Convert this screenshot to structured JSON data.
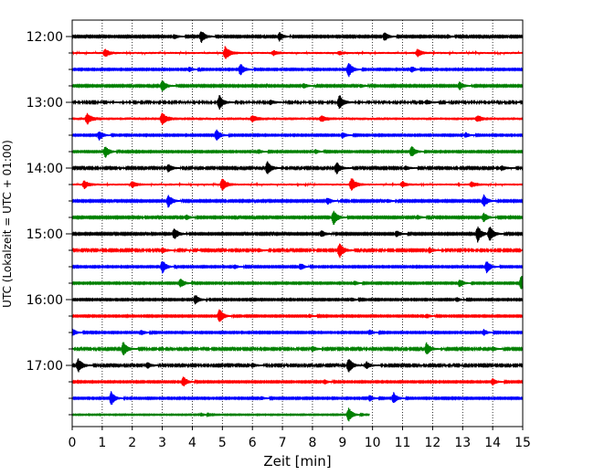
{
  "chart_data": {
    "type": "line",
    "subtype": "helicorder",
    "xlabel": "Zeit  [min]",
    "ylabel": "UTC (Lokalzeit = UTC + 01:00)",
    "xlim": [
      0,
      15
    ],
    "xticks": [
      0,
      1,
      2,
      3,
      4,
      5,
      6,
      7,
      8,
      9,
      10,
      11,
      12,
      13,
      14,
      15
    ],
    "vertical_gridlines": "dotted",
    "row_start": "12:00",
    "row_interval_min": 15,
    "hour_labels": [
      "12:00",
      "13:00",
      "14:00",
      "15:00",
      "16:00",
      "17:00"
    ],
    "colors_cycle": [
      "#000000",
      "#ff0000",
      "#0000ff",
      "#008000"
    ],
    "rows": [
      {
        "start": "12:00",
        "color": "#000000",
        "amplitude": 0.08,
        "end_min": 15,
        "events": [
          [
            4.3,
            0.7
          ],
          [
            6.9,
            0.5
          ],
          [
            10.4,
            0.5
          ],
          [
            3.4,
            0.25
          ],
          [
            12.5,
            0.2
          ]
        ]
      },
      {
        "start": "12:15",
        "color": "#ff0000",
        "amplitude": 0.12,
        "end_min": 15,
        "events": [
          [
            1.1,
            0.45
          ],
          [
            5.1,
            0.75
          ],
          [
            11.5,
            0.4
          ],
          [
            6.7,
            0.25
          ],
          [
            8.9,
            0.2
          ]
        ]
      },
      {
        "start": "12:30",
        "color": "#0000ff",
        "amplitude": 0.07,
        "end_min": 15,
        "events": [
          [
            5.6,
            0.7
          ],
          [
            9.2,
            0.9
          ],
          [
            11.3,
            0.35
          ],
          [
            3.9,
            0.25
          ]
        ]
      },
      {
        "start": "12:45",
        "color": "#008000",
        "amplitude": 0.08,
        "end_min": 15,
        "events": [
          [
            3.0,
            0.7
          ],
          [
            12.9,
            0.45
          ],
          [
            7.7,
            0.3
          ],
          [
            9.6,
            0.2
          ]
        ]
      },
      {
        "start": "13:00",
        "color": "#000000",
        "amplitude": 0.1,
        "end_min": 15,
        "events": [
          [
            4.9,
            0.8
          ],
          [
            8.9,
            0.85
          ],
          [
            6.6,
            0.25
          ],
          [
            11.8,
            0.25
          ]
        ]
      },
      {
        "start": "13:15",
        "color": "#ff0000",
        "amplitude": 0.16,
        "end_min": 15,
        "events": [
          [
            0.5,
            0.55
          ],
          [
            3.0,
            0.65
          ],
          [
            6.0,
            0.3
          ],
          [
            8.3,
            0.3
          ],
          [
            13.5,
            0.3
          ]
        ]
      },
      {
        "start": "13:30",
        "color": "#0000ff",
        "amplitude": 0.07,
        "end_min": 15,
        "events": [
          [
            0.9,
            0.55
          ],
          [
            4.8,
            0.65
          ],
          [
            9.0,
            0.35
          ],
          [
            13.1,
            0.3
          ]
        ]
      },
      {
        "start": "13:45",
        "color": "#008000",
        "amplitude": 0.07,
        "end_min": 15,
        "events": [
          [
            1.1,
            0.7
          ],
          [
            11.3,
            0.65
          ],
          [
            6.2,
            0.25
          ],
          [
            8.1,
            0.25
          ]
        ]
      },
      {
        "start": "14:00",
        "color": "#000000",
        "amplitude": 0.09,
        "end_min": 15,
        "events": [
          [
            3.2,
            0.45
          ],
          [
            6.5,
            0.75
          ],
          [
            8.8,
            0.7
          ],
          [
            14.3,
            0.3
          ],
          [
            11.1,
            0.2
          ]
        ]
      },
      {
        "start": "14:15",
        "color": "#ff0000",
        "amplitude": 0.12,
        "end_min": 15,
        "events": [
          [
            0.4,
            0.45
          ],
          [
            2.0,
            0.35
          ],
          [
            5.0,
            0.7
          ],
          [
            9.3,
            0.75
          ],
          [
            11.0,
            0.3
          ],
          [
            13.3,
            0.3
          ]
        ]
      },
      {
        "start": "14:30",
        "color": "#0000ff",
        "amplitude": 0.08,
        "end_min": 15,
        "events": [
          [
            3.2,
            0.75
          ],
          [
            8.5,
            0.4
          ],
          [
            13.7,
            0.7
          ],
          [
            10.5,
            0.2
          ]
        ]
      },
      {
        "start": "14:45",
        "color": "#008000",
        "amplitude": 0.08,
        "end_min": 15,
        "events": [
          [
            8.7,
            0.85
          ],
          [
            13.7,
            0.55
          ],
          [
            3.8,
            0.3
          ],
          [
            11.5,
            0.25
          ]
        ]
      },
      {
        "start": "15:00",
        "color": "#000000",
        "amplitude": 0.08,
        "end_min": 15,
        "events": [
          [
            3.4,
            0.7
          ],
          [
            8.3,
            0.4
          ],
          [
            13.5,
            0.9
          ],
          [
            13.9,
            0.9
          ],
          [
            10.8,
            0.35
          ]
        ]
      },
      {
        "start": "15:15",
        "color": "#ff0000",
        "amplitude": 0.09,
        "end_min": 15,
        "events": [
          [
            8.9,
            0.9
          ],
          [
            3.0,
            0.3
          ],
          [
            11.9,
            0.3
          ],
          [
            6.2,
            0.2
          ]
        ]
      },
      {
        "start": "15:30",
        "color": "#0000ff",
        "amplitude": 0.07,
        "end_min": 15,
        "events": [
          [
            3.0,
            0.75
          ],
          [
            7.6,
            0.4
          ],
          [
            13.8,
            0.7
          ],
          [
            5.4,
            0.25
          ]
        ]
      },
      {
        "start": "15:45",
        "color": "#008000",
        "amplitude": 0.07,
        "end_min": 15,
        "events": [
          [
            3.6,
            0.55
          ],
          [
            12.9,
            0.45
          ],
          [
            14.95,
            0.9
          ],
          [
            9.4,
            0.25
          ]
        ]
      },
      {
        "start": "16:00",
        "color": "#000000",
        "amplitude": 0.07,
        "end_min": 15,
        "events": [
          [
            4.1,
            0.55
          ],
          [
            12.8,
            0.25
          ],
          [
            9.3,
            0.2
          ]
        ]
      },
      {
        "start": "16:15",
        "color": "#ff0000",
        "amplitude": 0.07,
        "end_min": 15,
        "events": [
          [
            4.9,
            0.85
          ],
          [
            11.8,
            0.25
          ],
          [
            7.9,
            0.2
          ]
        ]
      },
      {
        "start": "16:30",
        "color": "#0000ff",
        "amplitude": 0.07,
        "end_min": 15,
        "events": [
          [
            0.0,
            0.45
          ],
          [
            2.3,
            0.3
          ],
          [
            9.9,
            0.3
          ],
          [
            13.7,
            0.35
          ]
        ]
      },
      {
        "start": "16:45",
        "color": "#008000",
        "amplitude": 0.09,
        "end_min": 15,
        "events": [
          [
            1.7,
            0.8
          ],
          [
            11.8,
            0.7
          ],
          [
            8.0,
            0.3
          ],
          [
            14.0,
            0.25
          ]
        ]
      },
      {
        "start": "17:00",
        "color": "#000000",
        "amplitude": 0.09,
        "end_min": 15,
        "events": [
          [
            0.2,
            0.8
          ],
          [
            2.5,
            0.35
          ],
          [
            9.2,
            0.85
          ],
          [
            9.8,
            0.4
          ],
          [
            6.0,
            0.25
          ]
        ]
      },
      {
        "start": "17:15",
        "color": "#ff0000",
        "amplitude": 0.07,
        "end_min": 15,
        "events": [
          [
            3.7,
            0.6
          ],
          [
            14.0,
            0.4
          ],
          [
            8.4,
            0.25
          ]
        ]
      },
      {
        "start": "17:30",
        "color": "#0000ff",
        "amplitude": 0.07,
        "end_min": 15,
        "events": [
          [
            1.3,
            0.8
          ],
          [
            10.7,
            0.65
          ],
          [
            9.9,
            0.35
          ],
          [
            6.3,
            0.2
          ]
        ]
      },
      {
        "start": "17:45",
        "color": "#008000",
        "amplitude": 0.05,
        "end_min": 9.9,
        "events": [
          [
            9.2,
            0.85
          ],
          [
            4.3,
            0.2
          ]
        ]
      }
    ]
  }
}
